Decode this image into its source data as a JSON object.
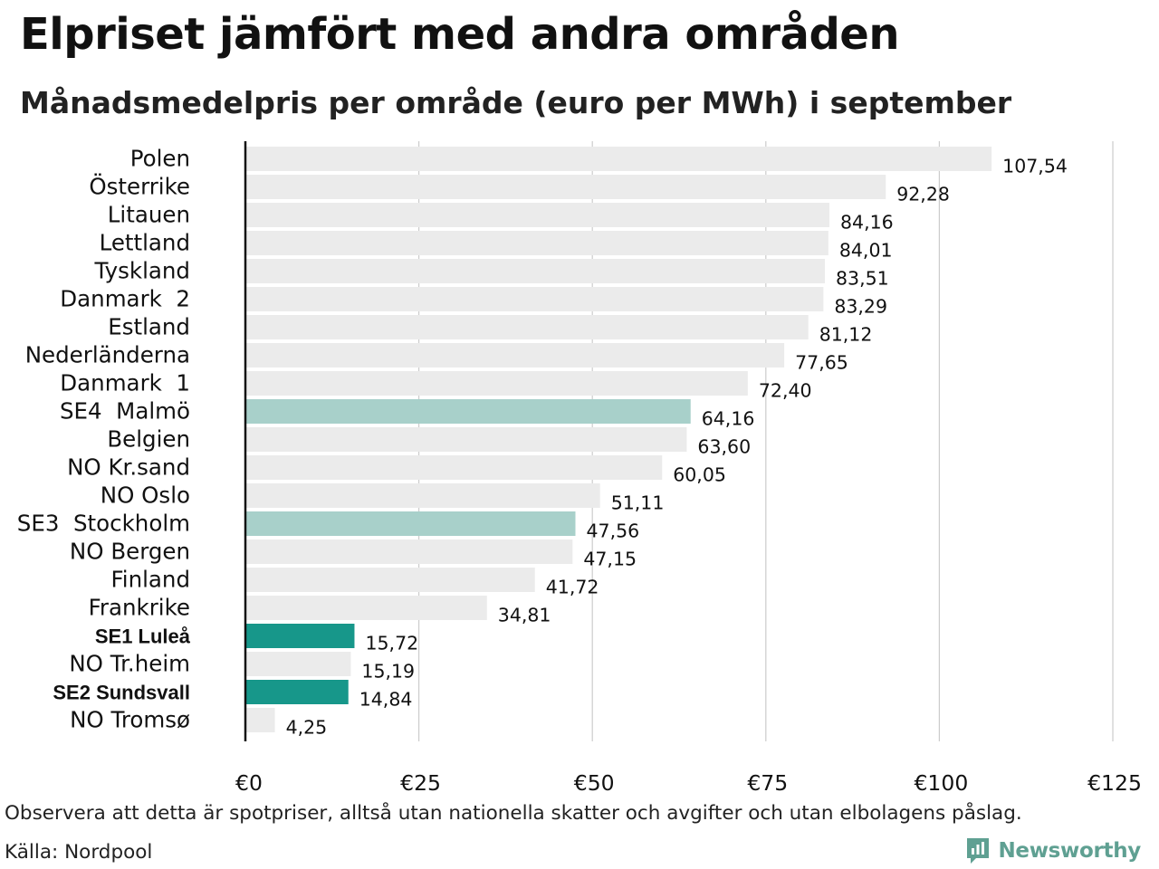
{
  "header": {
    "title": "Elpriset jämfört med andra områden",
    "subtitle": "Månadsmedelpris per område (euro per MWh) i september"
  },
  "footer": {
    "note": "Observera att detta är spotpriser, alltså utan nationella skatter och avgifter och utan elbolagens påslag.",
    "source": "Källa: Nordpool",
    "logo_text": "Newsworthy"
  },
  "colors": {
    "default_bar": "#ebebeb",
    "light_teal": "#a8d0ca",
    "dark_teal": "#17978a",
    "grid": "#cccccc",
    "axis": "#111111",
    "logo": "#5fa092"
  },
  "chart_data": {
    "type": "bar",
    "orientation": "horizontal",
    "title": "Elpriset jämfört med andra områden",
    "subtitle": "Månadsmedelpris per område (euro per MWh) i september",
    "xlabel": "",
    "ylabel": "",
    "xlim": [
      0,
      125
    ],
    "ticks": [
      0,
      25,
      50,
      75,
      100,
      125
    ],
    "tick_labels": [
      "€0",
      "€25",
      "€50",
      "€75",
      "€100",
      "€125"
    ],
    "grid": true,
    "categories": [
      "Polen",
      "Österrike",
      "Litauen",
      "Lettland",
      "Tyskland",
      "Danmark  2",
      "Estland",
      "Nederländerna",
      "Danmark  1",
      "SE4  Malmö",
      "Belgien",
      "NO Kr.sand",
      "NO Oslo",
      "SE3  Stockholm",
      "NO Bergen",
      "Finland",
      "Frankrike",
      "SE1 Luleå",
      "NO Tr.heim",
      "SE2 Sundsvall",
      "NO Tromsø"
    ],
    "values": [
      107.54,
      92.28,
      84.16,
      84.01,
      83.51,
      83.29,
      81.12,
      77.65,
      72.4,
      64.16,
      63.6,
      60.05,
      51.11,
      47.56,
      47.15,
      41.72,
      34.81,
      15.72,
      15.19,
      14.84,
      4.25
    ],
    "value_labels": [
      "107,54",
      "92,28",
      "84,16",
      "84,01",
      "83,51",
      "83,29",
      "81,12",
      "77,65",
      "72,40",
      "64,16",
      "63,60",
      "60,05",
      "51,11",
      "47,56",
      "47,15",
      "41,72",
      "34,81",
      "15,72",
      "15,19",
      "14,84",
      "4,25"
    ],
    "highlight": [
      "default",
      "default",
      "default",
      "default",
      "default",
      "default",
      "default",
      "default",
      "default",
      "light",
      "default",
      "default",
      "default",
      "light",
      "default",
      "default",
      "default",
      "dark",
      "default",
      "dark",
      "default"
    ]
  }
}
